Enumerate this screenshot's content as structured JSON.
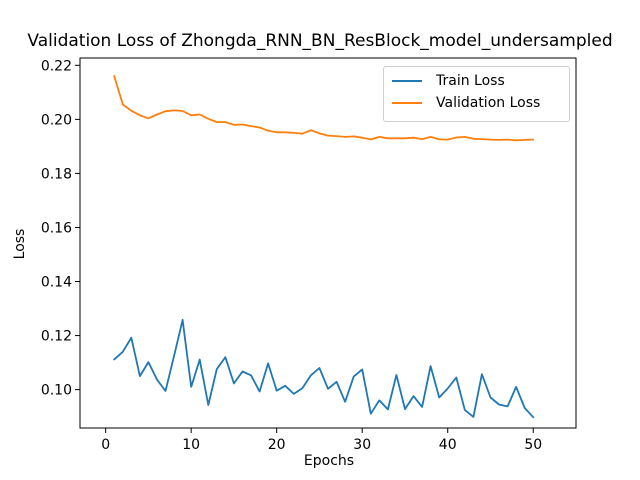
{
  "chart_data": {
    "type": "line",
    "title": "Validation Loss of Zhongda_RNN_BN_ResBlock_model_undersampled",
    "xlabel": "Epochs",
    "ylabel": "Loss",
    "xlim": [
      -3,
      55
    ],
    "ylim": [
      0.0858,
      0.2227
    ],
    "xticks": [
      0,
      10,
      20,
      30,
      40,
      50
    ],
    "yticks": [
      0.1,
      0.12,
      0.14,
      0.16,
      0.18,
      0.2,
      0.22
    ],
    "ytick_labels": [
      "0.10",
      "0.12",
      "0.14",
      "0.16",
      "0.18",
      "0.20",
      "0.22"
    ],
    "grid": false,
    "legend_position": "top-right",
    "x": [
      1,
      2,
      3,
      4,
      5,
      6,
      7,
      8,
      9,
      10,
      11,
      12,
      13,
      14,
      15,
      16,
      17,
      18,
      19,
      20,
      21,
      22,
      23,
      24,
      25,
      26,
      27,
      28,
      29,
      30,
      31,
      32,
      33,
      34,
      35,
      36,
      37,
      38,
      39,
      40,
      41,
      42,
      43,
      44,
      45,
      46,
      47,
      48,
      49,
      50
    ],
    "series": [
      {
        "name": "Train Loss",
        "color": "#1f77b4",
        "values": [
          0.1112,
          0.114,
          0.1192,
          0.105,
          0.1102,
          0.1037,
          0.0995,
          0.1125,
          0.1258,
          0.101,
          0.1111,
          0.0943,
          0.1076,
          0.112,
          0.1023,
          0.1067,
          0.1053,
          0.0993,
          0.1097,
          0.0996,
          0.1014,
          0.0984,
          0.1005,
          0.1053,
          0.108,
          0.1003,
          0.1029,
          0.0955,
          0.1048,
          0.1075,
          0.0911,
          0.096,
          0.0927,
          0.1054,
          0.0928,
          0.0976,
          0.0936,
          0.1087,
          0.0971,
          0.1004,
          0.1045,
          0.0925,
          0.0899,
          0.1057,
          0.0971,
          0.0945,
          0.0938,
          0.101,
          0.0932,
          0.0898
        ]
      },
      {
        "name": "Validation Loss",
        "color": "#ff7f0e",
        "values": [
          0.216,
          0.2055,
          0.2032,
          0.2015,
          0.2004,
          0.2018,
          0.203,
          0.2033,
          0.2031,
          0.2015,
          0.2018,
          0.2002,
          0.199,
          0.199,
          0.198,
          0.1981,
          0.1975,
          0.197,
          0.1958,
          0.1952,
          0.1952,
          0.195,
          0.1947,
          0.196,
          0.1948,
          0.194,
          0.1938,
          0.1935,
          0.1937,
          0.1932,
          0.1926,
          0.1935,
          0.193,
          0.193,
          0.193,
          0.1932,
          0.1927,
          0.1935,
          0.1926,
          0.1925,
          0.1933,
          0.1935,
          0.1928,
          0.1927,
          0.1925,
          0.1924,
          0.1925,
          0.1922,
          0.1924,
          0.1925
        ]
      }
    ]
  }
}
